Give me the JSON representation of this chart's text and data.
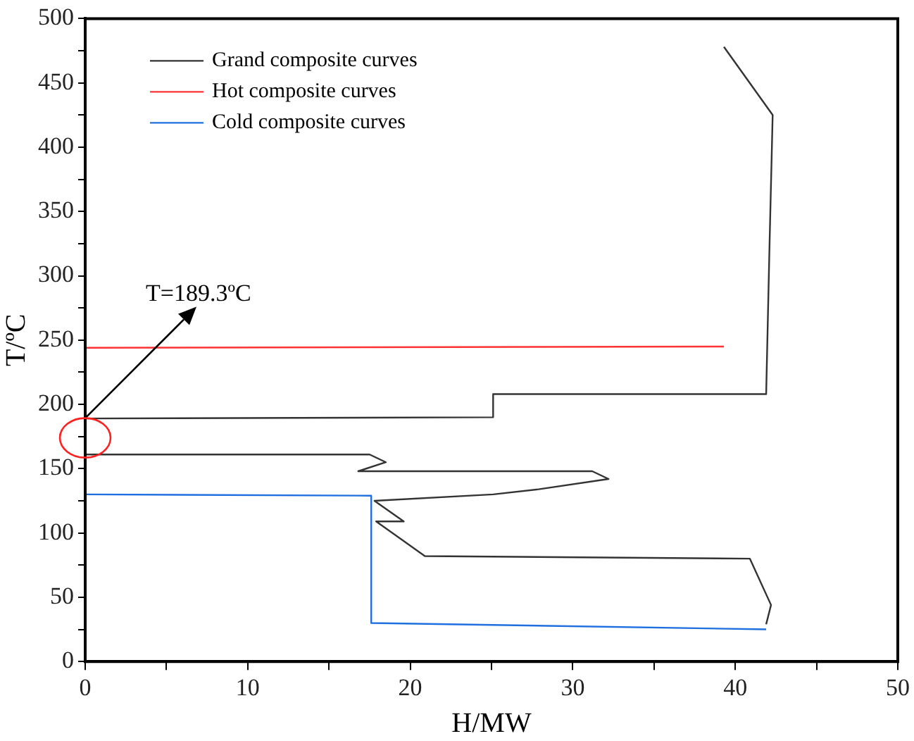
{
  "chart_data": {
    "type": "line",
    "xlabel": "H/MW",
    "ylabel": "T/ºC",
    "xlim": [
      0,
      50
    ],
    "ylim": [
      0,
      500
    ],
    "xticks": [
      0,
      {
        "value": 5,
        "label": null
      },
      10,
      {
        "value": 15,
        "label": null
      },
      20,
      {
        "value": 25,
        "label": null
      },
      30,
      {
        "value": 35,
        "label": null
      },
      40,
      {
        "value": 45,
        "label": null
      },
      50
    ],
    "yticks": [
      0,
      {
        "value": 25,
        "label": null
      },
      50,
      {
        "value": 75,
        "label": null
      },
      100,
      {
        "value": 125,
        "label": null
      },
      150,
      {
        "value": 175,
        "label": null
      },
      200,
      {
        "value": 225,
        "label": null
      },
      250,
      {
        "value": 275,
        "label": null
      },
      300,
      {
        "value": 325,
        "label": null
      },
      350,
      {
        "value": 375,
        "label": null
      },
      400,
      {
        "value": 425,
        "label": null
      },
      450,
      {
        "value": 475,
        "label": null
      },
      500
    ],
    "grid": false,
    "legend": "top left",
    "marker": "none",
    "line_style": "solid",
    "annotations": [
      {
        "text": "T=189.3ºC",
        "x": 0,
        "y": 189.3
      }
    ],
    "series": [
      {
        "name": "Grand composite curves",
        "color": "#333333",
        "x": [
          39.3,
          42.3,
          42.1,
          41.9,
          25.1,
          25.1,
          0,
          0,
          17.5,
          18.5,
          16.8,
          31.2,
          32.2,
          27.9,
          25.1,
          17.8,
          19.6,
          17.9,
          20.9,
          40.9,
          42.2,
          41.9
        ],
        "values": [
          478,
          425,
          320,
          208,
          208,
          190,
          189,
          161,
          161,
          155,
          148,
          148,
          142,
          134,
          130,
          125,
          109,
          109,
          82,
          80,
          44,
          29
        ]
      },
      {
        "name": "Hot composite curves",
        "color": "#ff3333",
        "x": [
          0,
          39.3
        ],
        "values": [
          244,
          245
        ]
      },
      {
        "name": "Cold composite curves",
        "color": "#1f6fe0",
        "x": [
          0,
          17.6,
          17.6,
          41.9
        ],
        "values": [
          130,
          129,
          30,
          25
        ]
      }
    ]
  }
}
